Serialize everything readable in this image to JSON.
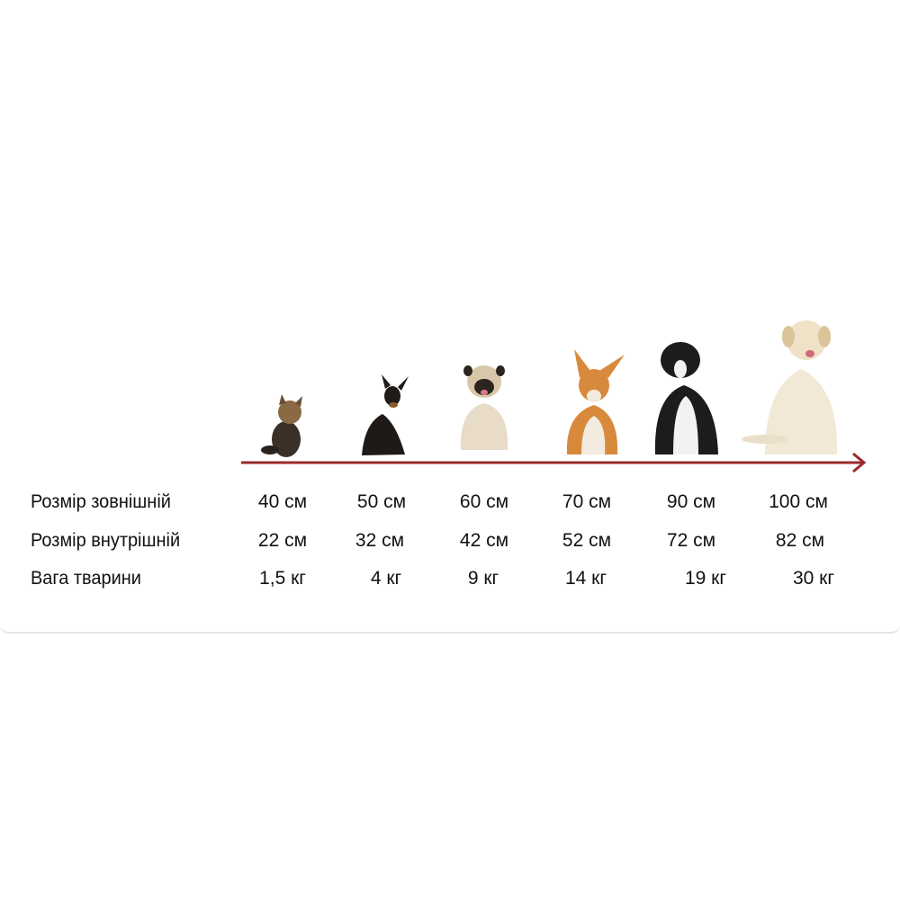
{
  "arrow_color": "#9b2a2a",
  "dogs": [
    {
      "icon": "yorkshire-terrier-icon"
    },
    {
      "icon": "miniature-pinscher-icon"
    },
    {
      "icon": "pug-icon"
    },
    {
      "icon": "corgi-icon"
    },
    {
      "icon": "border-collie-icon"
    },
    {
      "icon": "labrador-icon"
    }
  ],
  "rows": [
    {
      "label": "Розмір зовнішній",
      "values": [
        "40 см",
        "50 см",
        "60 см",
        "70 см",
        "90 см",
        "100 см"
      ]
    },
    {
      "label": "Розмір внутрішній",
      "values": [
        "22 см",
        "32 см",
        "42 см",
        "52 см",
        "72 см",
        "82 см"
      ]
    },
    {
      "label": "Вага тварини",
      "values": [
        "1,5 кг",
        "4 кг",
        "9 кг",
        "14 кг",
        "19 кг",
        "30 кг"
      ]
    }
  ]
}
